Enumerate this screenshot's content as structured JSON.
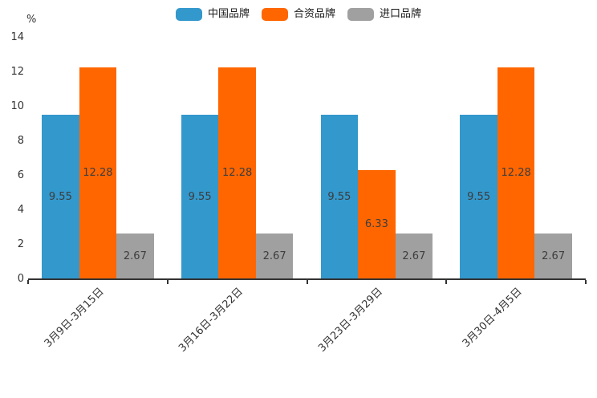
{
  "chart_data": {
    "type": "bar",
    "title": "",
    "xlabel": "",
    "ylabel": "%",
    "categories": [
      "3月9日-3月15日",
      "3月16日-3月22日",
      "3月23日-3月29日",
      "3月30日-4月5日"
    ],
    "series": [
      {
        "name": "中国品牌",
        "color": "#3398CC",
        "values": [
          9.55,
          9.55,
          9.55,
          9.55
        ]
      },
      {
        "name": "合资品牌",
        "color": "#FF6600",
        "values": [
          12.28,
          12.28,
          6.33,
          12.28
        ]
      },
      {
        "name": "进口品牌",
        "color": "#A0A0A0",
        "values": [
          2.67,
          2.67,
          2.67,
          2.67
        ]
      }
    ],
    "value_labels": [
      "9.55",
      "12.28",
      "6.33",
      "2.67"
    ],
    "ylim": [
      0,
      14
    ],
    "yticks": [
      0,
      2,
      4,
      6,
      8,
      10,
      12,
      14
    ],
    "legend_position": "top",
    "grid": false,
    "axis_color": "#333333",
    "text_color": "#333333"
  }
}
